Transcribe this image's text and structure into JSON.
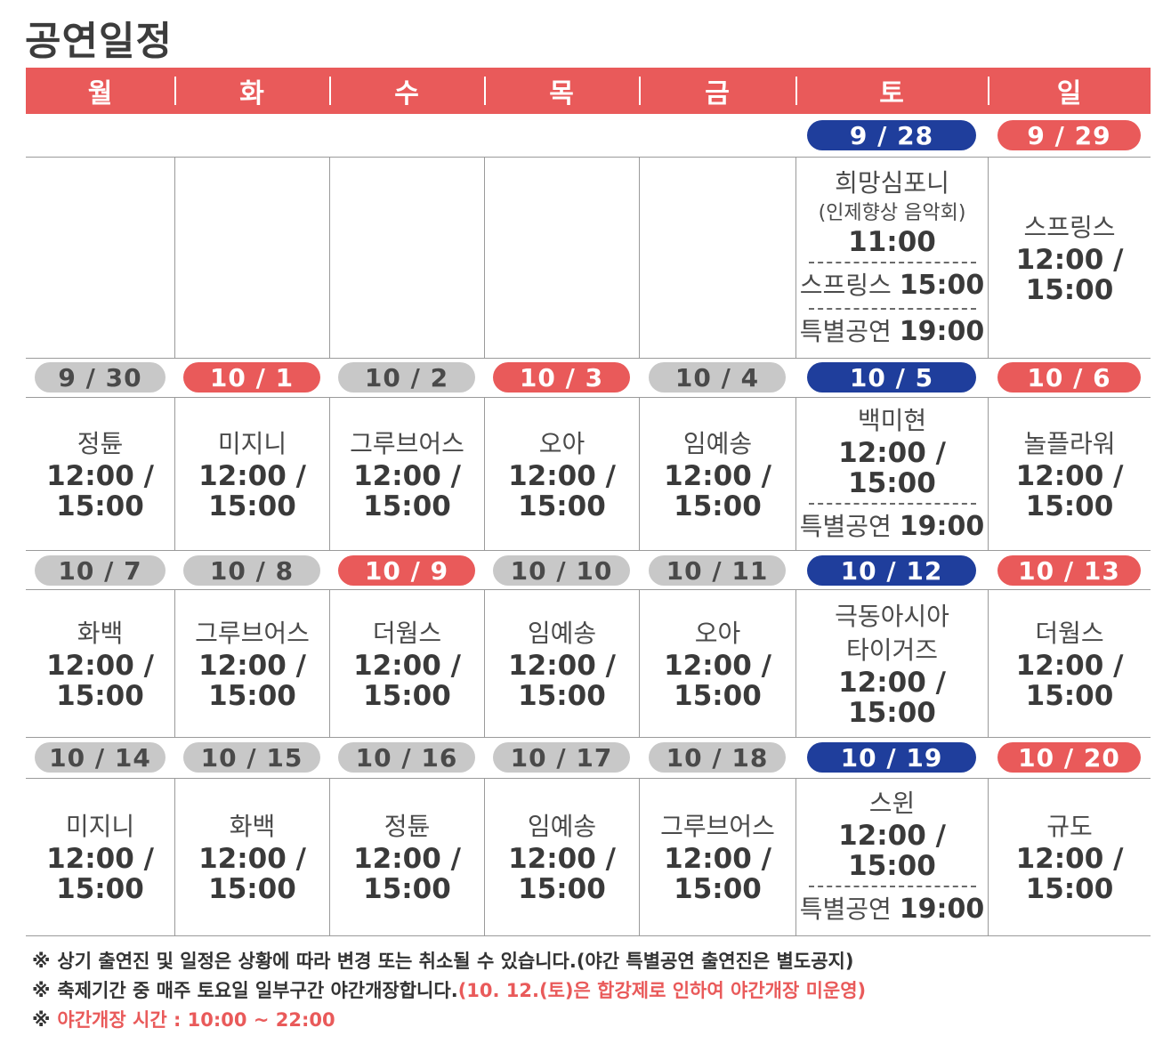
{
  "title": "공연일정",
  "days": [
    "월",
    "화",
    "수",
    "목",
    "금",
    "토",
    "일"
  ],
  "colors": {
    "header": "#e95a5a",
    "saturday": "#1f3e9c",
    "holiday": "#e95a5a",
    "weekday": "#c8c8c8"
  },
  "weeks": [
    {
      "dates": [
        {
          "label": "",
          "type": "none"
        },
        {
          "label": "",
          "type": "none"
        },
        {
          "label": "",
          "type": "none"
        },
        {
          "label": "",
          "type": "none"
        },
        {
          "label": "",
          "type": "none"
        },
        {
          "label": "9 / 28",
          "type": "blue"
        },
        {
          "label": "9 / 29",
          "type": "red"
        }
      ],
      "events": [
        {},
        {},
        {},
        {},
        {},
        {
          "name": "희망심포니",
          "sub": "(인제향상 음악회)",
          "time": "11:00",
          "extras": [
            {
              "name": "스프링스",
              "time": "15:00"
            },
            {
              "name": "특별공연",
              "time": "19:00"
            }
          ]
        },
        {
          "name": "스프링스",
          "time1": "12:00 /",
          "time2": "15:00"
        }
      ]
    },
    {
      "dates": [
        {
          "label": "9 / 30",
          "type": "gray"
        },
        {
          "label": "10 / 1",
          "type": "red"
        },
        {
          "label": "10 / 2",
          "type": "gray"
        },
        {
          "label": "10 / 3",
          "type": "red"
        },
        {
          "label": "10 / 4",
          "type": "gray"
        },
        {
          "label": "10 / 5",
          "type": "blue"
        },
        {
          "label": "10 / 6",
          "type": "red"
        }
      ],
      "events": [
        {
          "name": "정튠",
          "time1": "12:00 /",
          "time2": "15:00"
        },
        {
          "name": "미지니",
          "time1": "12:00 /",
          "time2": "15:00"
        },
        {
          "name": "그루브어스",
          "time1": "12:00 /",
          "time2": "15:00"
        },
        {
          "name": "오아",
          "time1": "12:00 /",
          "time2": "15:00"
        },
        {
          "name": "임예송",
          "time1": "12:00 /",
          "time2": "15:00"
        },
        {
          "name": "백미현",
          "time1": "12:00 /",
          "time2": "15:00",
          "extras": [
            {
              "name": "특별공연",
              "time": "19:00"
            }
          ]
        },
        {
          "name": "놀플라워",
          "time1": "12:00 /",
          "time2": "15:00"
        }
      ]
    },
    {
      "dates": [
        {
          "label": "10 / 7",
          "type": "gray"
        },
        {
          "label": "10 / 8",
          "type": "gray"
        },
        {
          "label": "10 / 9",
          "type": "red"
        },
        {
          "label": "10 / 10",
          "type": "gray"
        },
        {
          "label": "10 / 11",
          "type": "gray"
        },
        {
          "label": "10 / 12",
          "type": "blue"
        },
        {
          "label": "10 / 13",
          "type": "red"
        }
      ],
      "events": [
        {
          "name": "화백",
          "time1": "12:00 /",
          "time2": "15:00"
        },
        {
          "name": "그루브어스",
          "time1": "12:00 /",
          "time2": "15:00"
        },
        {
          "name": "더웜스",
          "time1": "12:00 /",
          "time2": "15:00"
        },
        {
          "name": "임예송",
          "time1": "12:00 /",
          "time2": "15:00"
        },
        {
          "name": "오아",
          "time1": "12:00 /",
          "time2": "15:00"
        },
        {
          "name": "극동아시아",
          "name2": "타이거즈",
          "time1": "12:00 /",
          "time2": "15:00"
        },
        {
          "name": "더웜스",
          "time1": "12:00 /",
          "time2": "15:00"
        }
      ]
    },
    {
      "dates": [
        {
          "label": "10 / 14",
          "type": "gray"
        },
        {
          "label": "10 / 15",
          "type": "gray"
        },
        {
          "label": "10 / 16",
          "type": "gray"
        },
        {
          "label": "10 / 17",
          "type": "gray"
        },
        {
          "label": "10 / 18",
          "type": "gray"
        },
        {
          "label": "10 / 19",
          "type": "blue"
        },
        {
          "label": "10 / 20",
          "type": "red"
        }
      ],
      "events": [
        {
          "name": "미지니",
          "time1": "12:00 /",
          "time2": "15:00"
        },
        {
          "name": "화백",
          "time1": "12:00 /",
          "time2": "15:00"
        },
        {
          "name": "정튠",
          "time1": "12:00 /",
          "time2": "15:00"
        },
        {
          "name": "임예송",
          "time1": "12:00 /",
          "time2": "15:00"
        },
        {
          "name": "그루브어스",
          "time1": "12:00 /",
          "time2": "15:00"
        },
        {
          "name": "스윈",
          "time1": "12:00 /",
          "time2": "15:00",
          "extras": [
            {
              "name": "특별공연",
              "time": "19:00"
            }
          ]
        },
        {
          "name": "규도",
          "time1": "12:00 /",
          "time2": "15:00"
        }
      ]
    }
  ],
  "notes": {
    "mark": "※",
    "note1": "상기 출연진 및 일정은 상황에 따라 변경 또는 취소될 수 있습니다.(야간 특별공연 출연진은 별도공지)",
    "note2_plain": "축제기간 중 매주 토요일 일부구간 야간개장합니다.",
    "note2_red": "(10. 12.(토)은 합강제로 인하여 야간개장 미운영)",
    "note3_red": "야간개장 시간 : 10:00 ~ 22:00"
  }
}
